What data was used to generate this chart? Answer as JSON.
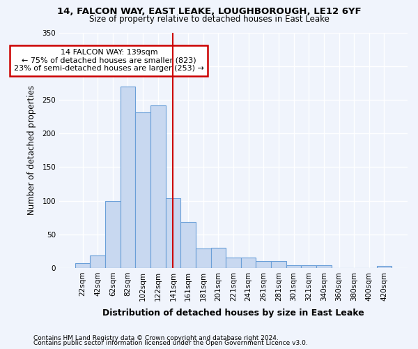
{
  "title1": "14, FALCON WAY, EAST LEAKE, LOUGHBOROUGH, LE12 6YF",
  "title2": "Size of property relative to detached houses in East Leake",
  "xlabel": "Distribution of detached houses by size in East Leake",
  "ylabel": "Number of detached properties",
  "bar_color": "#c8d8f0",
  "bar_edge_color": "#6a9fd8",
  "bg_color": "#f0f4fc",
  "grid_color": "#ffffff",
  "vline_color": "#cc0000",
  "annotation_text": "14 FALCON WAY: 139sqm\n← 75% of detached houses are smaller (823)\n23% of semi-detached houses are larger (253) →",
  "annotation_box_facecolor": "#ffffff",
  "annotation_box_edgecolor": "#cc0000",
  "vline_bin_index": 6,
  "categories": [
    "22sqm",
    "42sqm",
    "62sqm",
    "82sqm",
    "102sqm",
    "122sqm",
    "141sqm",
    "161sqm",
    "181sqm",
    "201sqm",
    "221sqm",
    "241sqm",
    "261sqm",
    "281sqm",
    "301sqm",
    "321sqm",
    "340sqm",
    "360sqm",
    "380sqm",
    "400sqm",
    "420sqm"
  ],
  "values": [
    7,
    19,
    99,
    270,
    231,
    242,
    104,
    68,
    29,
    30,
    15,
    15,
    10,
    10,
    4,
    4,
    4,
    0,
    0,
    0,
    3
  ],
  "ylim": [
    0,
    350
  ],
  "yticks": [
    0,
    50,
    100,
    150,
    200,
    250,
    300,
    350
  ],
  "footer1": "Contains HM Land Registry data © Crown copyright and database right 2024.",
  "footer2": "Contains public sector information licensed under the Open Government Licence v3.0."
}
